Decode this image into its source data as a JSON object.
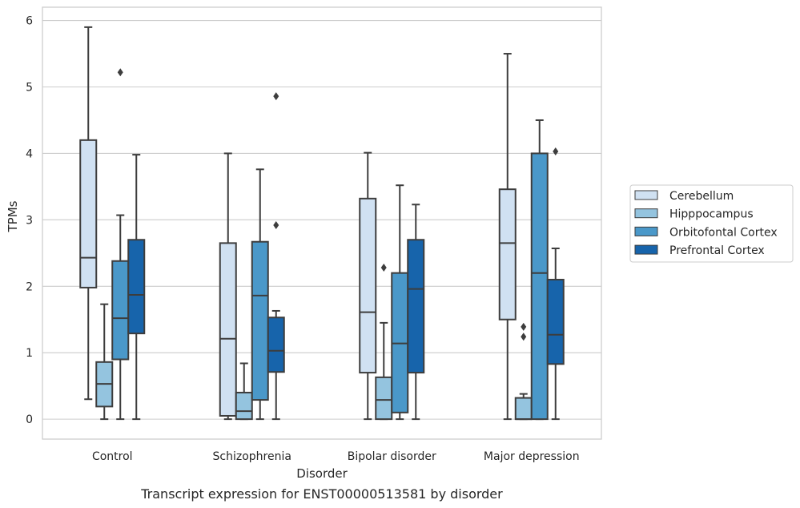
{
  "chart_data": {
    "type": "box",
    "title": "Transcript expression for ENST00000513581 by disorder",
    "xlabel": "Disorder",
    "ylabel": "TPMs",
    "ylim": [
      -0.3,
      6.2
    ],
    "yticks": [
      0,
      1,
      2,
      3,
      4,
      5,
      6
    ],
    "grid": true,
    "legend_position": "right",
    "categories": [
      "Control",
      "Schizophrenia",
      "Bipolar disorder",
      "Major depression"
    ],
    "series": [
      {
        "name": "Cerebellum",
        "color": "#d0e1f2",
        "boxes": [
          {
            "whislo": 0.3,
            "q1": 1.98,
            "med": 2.43,
            "q3": 4.2,
            "whishi": 5.9,
            "fliers": []
          },
          {
            "whislo": 0.0,
            "q1": 0.05,
            "med": 1.21,
            "q3": 2.65,
            "whishi": 4.0,
            "fliers": []
          },
          {
            "whislo": 0.0,
            "q1": 0.7,
            "med": 1.61,
            "q3": 3.32,
            "whishi": 4.01,
            "fliers": []
          },
          {
            "whislo": 0.0,
            "q1": 1.5,
            "med": 2.65,
            "q3": 3.46,
            "whishi": 5.5,
            "fliers": []
          }
        ]
      },
      {
        "name": "Hipppocampus",
        "color": "#94c4df",
        "boxes": [
          {
            "whislo": 0.0,
            "q1": 0.19,
            "med": 0.53,
            "q3": 0.86,
            "whishi": 1.73,
            "fliers": []
          },
          {
            "whislo": 0.0,
            "q1": 0.0,
            "med": 0.12,
            "q3": 0.4,
            "whishi": 0.84,
            "fliers": []
          },
          {
            "whislo": 0.0,
            "q1": 0.0,
            "med": 0.29,
            "q3": 0.63,
            "whishi": 1.45,
            "fliers": [
              2.28
            ]
          },
          {
            "whislo": 0.0,
            "q1": 0.0,
            "med": 0.0,
            "q3": 0.32,
            "whishi": 0.38,
            "fliers": [
              1.39,
              1.24
            ]
          }
        ]
      },
      {
        "name": "Orbitofontal Cortex",
        "color": "#4a98c9",
        "boxes": [
          {
            "whislo": 0.0,
            "q1": 0.9,
            "med": 1.52,
            "q3": 2.38,
            "whishi": 3.07,
            "fliers": [
              5.22
            ]
          },
          {
            "whislo": 0.0,
            "q1": 0.29,
            "med": 1.86,
            "q3": 2.67,
            "whishi": 3.76,
            "fliers": []
          },
          {
            "whislo": 0.0,
            "q1": 0.1,
            "med": 1.14,
            "q3": 2.2,
            "whishi": 3.52,
            "fliers": []
          },
          {
            "whislo": 0.0,
            "q1": 0.0,
            "med": 2.2,
            "q3": 4.0,
            "whishi": 4.5,
            "fliers": []
          }
        ]
      },
      {
        "name": "Prefrontal Cortex",
        "color": "#1764ab",
        "boxes": [
          {
            "whislo": 0.0,
            "q1": 1.29,
            "med": 1.87,
            "q3": 2.7,
            "whishi": 3.98,
            "fliers": []
          },
          {
            "whislo": 0.0,
            "q1": 0.71,
            "med": 1.03,
            "q3": 1.53,
            "whishi": 1.63,
            "fliers": [
              2.92,
              4.86
            ]
          },
          {
            "whislo": 0.0,
            "q1": 0.7,
            "med": 1.96,
            "q3": 2.7,
            "whishi": 3.23,
            "fliers": []
          },
          {
            "whislo": 0.0,
            "q1": 0.83,
            "med": 1.27,
            "q3": 2.1,
            "whishi": 2.57,
            "fliers": [
              4.03
            ]
          }
        ]
      }
    ]
  }
}
